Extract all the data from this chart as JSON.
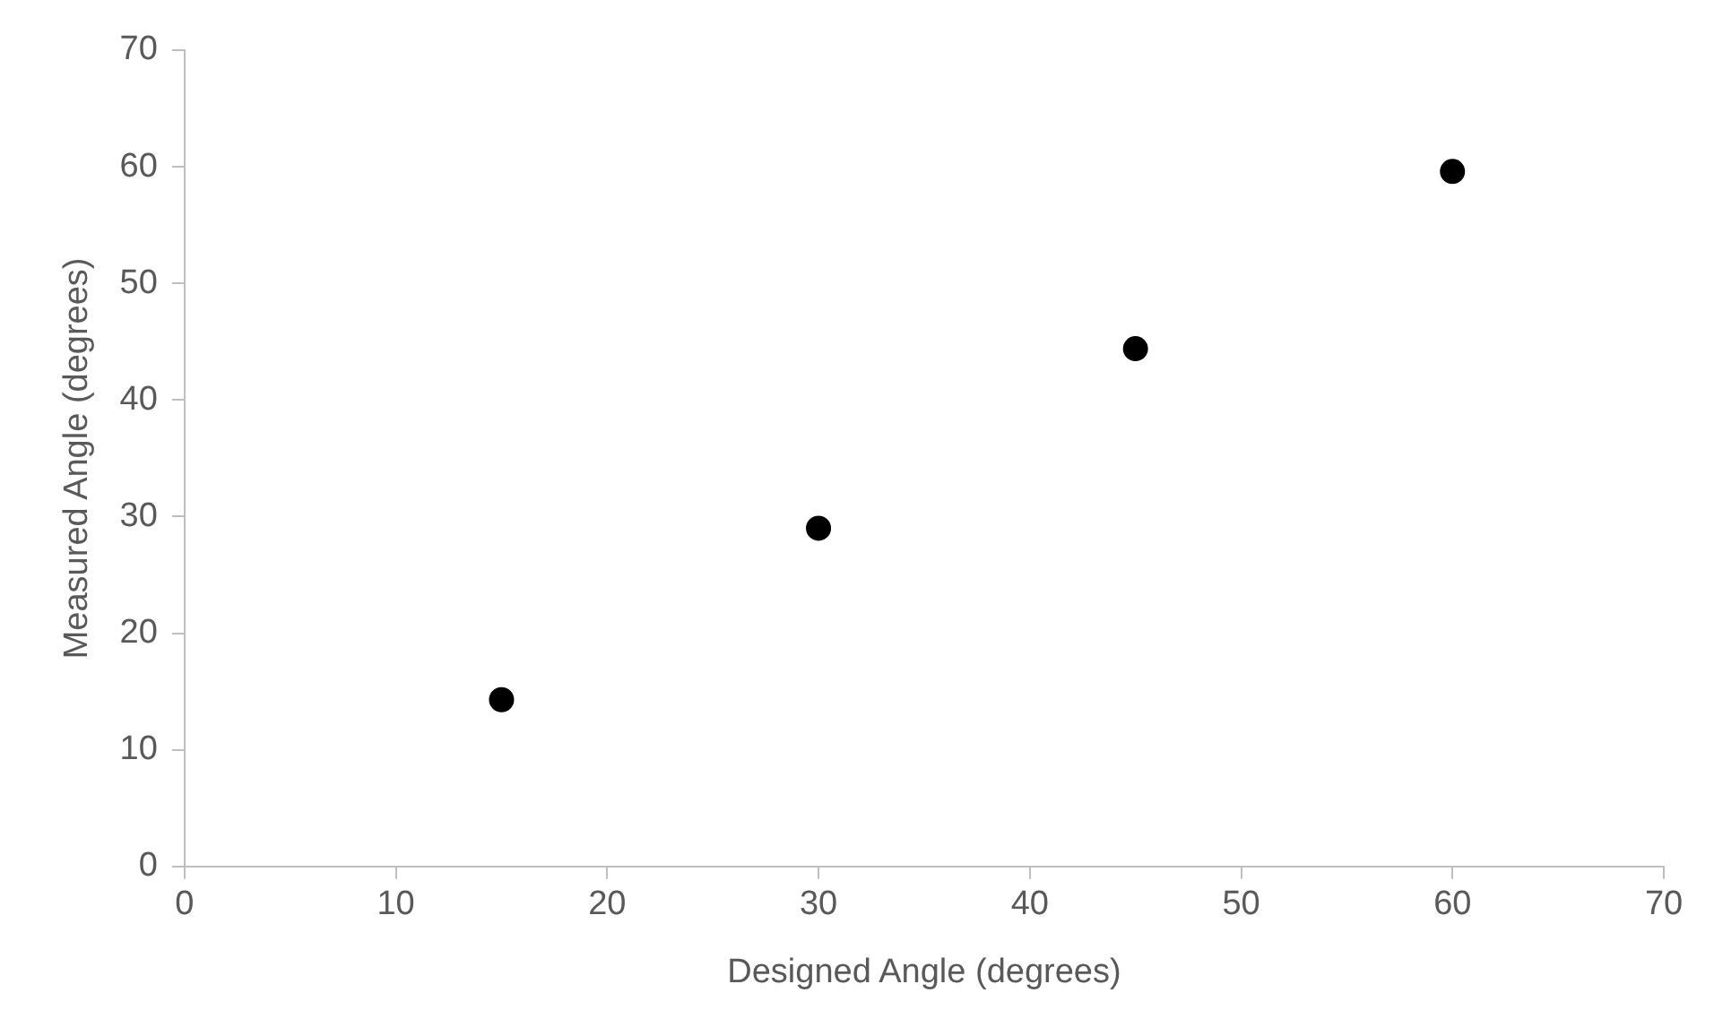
{
  "chart_data": {
    "type": "scatter",
    "xlabel": "Designed Angle (degrees)",
    "ylabel": "Measured Angle (degrees)",
    "x": [
      15,
      30,
      45,
      60
    ],
    "series": [
      {
        "color": "#000000",
        "values": [
          14.3,
          29,
          44.4,
          59.6
        ]
      }
    ],
    "xlim": [
      0,
      70
    ],
    "ylim": [
      0,
      70
    ],
    "xticks": [
      0,
      10,
      20,
      30,
      40,
      50,
      60,
      70
    ],
    "yticks": [
      0,
      10,
      20,
      30,
      40,
      50,
      60,
      70
    ],
    "grid": false,
    "legend": false,
    "marker": "circle"
  }
}
